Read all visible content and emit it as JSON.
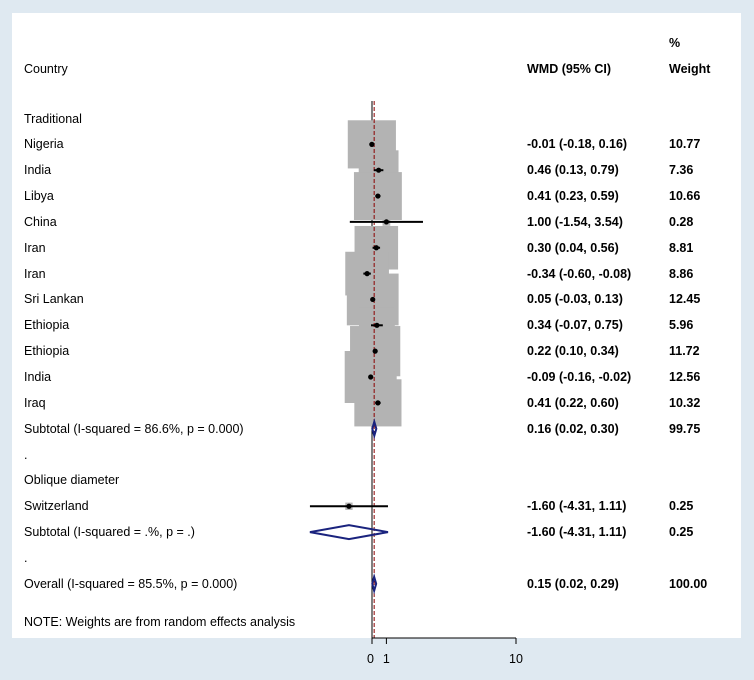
{
  "header": {
    "country_col": "Country",
    "ci_col": "WMD (95% CI)",
    "weight_col_top": "%",
    "weight_col_bottom": "Weight"
  },
  "colors": {
    "background": "#dfe9f1",
    "panel": "#ffffff",
    "box": "#b3b3b3",
    "diamond": "#1a237e",
    "null_line": "#000000",
    "overall_line": "#8b0000"
  },
  "chart_data": {
    "type": "forest",
    "null_value": 0,
    "overall_effect": 0.15,
    "x_ticks": [
      0,
      1,
      10
    ],
    "x_tick_labels": [
      "0",
      "1",
      "10"
    ],
    "rows": [
      {
        "kind": "header",
        "label": "Traditional"
      },
      {
        "kind": "study",
        "label": "Nigeria",
        "est": -0.01,
        "lo": -0.18,
        "hi": 0.16,
        "ci_text": "-0.01 (-0.18, 0.16)",
        "weight": 10.77,
        "weight_text": "10.77"
      },
      {
        "kind": "study",
        "label": "India",
        "est": 0.46,
        "lo": 0.13,
        "hi": 0.79,
        "ci_text": "0.46 (0.13, 0.79)",
        "weight": 7.36,
        "weight_text": "7.36"
      },
      {
        "kind": "study",
        "label": "Libya",
        "est": 0.41,
        "lo": 0.23,
        "hi": 0.59,
        "ci_text": "0.41 (0.23, 0.59)",
        "weight": 10.66,
        "weight_text": "10.66"
      },
      {
        "kind": "study",
        "label": "China",
        "est": 1.0,
        "lo": -1.54,
        "hi": 3.54,
        "ci_text": "1.00 (-1.54, 3.54)",
        "weight": 0.28,
        "weight_text": "0.28"
      },
      {
        "kind": "study",
        "label": "Iran",
        "est": 0.3,
        "lo": 0.04,
        "hi": 0.56,
        "ci_text": "0.30 (0.04, 0.56)",
        "weight": 8.81,
        "weight_text": "8.81"
      },
      {
        "kind": "study",
        "label": "Iran",
        "est": -0.34,
        "lo": -0.6,
        "hi": -0.08,
        "ci_text": "-0.34 (-0.60, -0.08)",
        "weight": 8.86,
        "weight_text": "8.86"
      },
      {
        "kind": "study",
        "label": "Sri Lankan",
        "est": 0.05,
        "lo": -0.03,
        "hi": 0.13,
        "ci_text": "0.05 (-0.03, 0.13)",
        "weight": 12.45,
        "weight_text": "12.45"
      },
      {
        "kind": "study",
        "label": "Ethiopia",
        "est": 0.34,
        "lo": -0.07,
        "hi": 0.75,
        "ci_text": "0.34 (-0.07, 0.75)",
        "weight": 5.96,
        "weight_text": "5.96"
      },
      {
        "kind": "study",
        "label": "Ethiopia",
        "est": 0.22,
        "lo": 0.1,
        "hi": 0.34,
        "ci_text": "0.22 (0.10, 0.34)",
        "weight": 11.72,
        "weight_text": "11.72"
      },
      {
        "kind": "study",
        "label": "India",
        "est": -0.09,
        "lo": -0.16,
        "hi": -0.02,
        "ci_text": "-0.09 (-0.16, -0.02)",
        "weight": 12.56,
        "weight_text": "12.56"
      },
      {
        "kind": "study",
        "label": "Iraq",
        "est": 0.41,
        "lo": 0.22,
        "hi": 0.6,
        "ci_text": "0.41 (0.22, 0.60)",
        "weight": 10.32,
        "weight_text": "10.32"
      },
      {
        "kind": "subtotal",
        "label": "Subtotal  (I-squared = 86.6%, p = 0.000)",
        "est": 0.16,
        "lo": 0.02,
        "hi": 0.3,
        "ci_text": "0.16 (0.02, 0.30)",
        "weight": 99.75,
        "weight_text": "99.75"
      },
      {
        "kind": "blank",
        "label": "."
      },
      {
        "kind": "header",
        "label": "Oblique diameter"
      },
      {
        "kind": "study",
        "label": "Switzerland",
        "est": -1.6,
        "lo": -4.31,
        "hi": 1.11,
        "ci_text": "-1.60 (-4.31, 1.11)",
        "weight": 0.25,
        "weight_text": "0.25"
      },
      {
        "kind": "subtotal",
        "label": "Subtotal  (I-squared = .%, p = .)",
        "est": -1.6,
        "lo": -4.31,
        "hi": 1.11,
        "ci_text": "-1.60 (-4.31, 1.11)",
        "weight": 0.25,
        "weight_text": "0.25"
      },
      {
        "kind": "blank",
        "label": "."
      },
      {
        "kind": "overall",
        "label": "Overall  (I-squared = 85.5%, p = 0.000)",
        "est": 0.15,
        "lo": 0.02,
        "hi": 0.29,
        "ci_text": "0.15 (0.02, 0.29)",
        "weight": 100.0,
        "weight_text": "100.00"
      }
    ],
    "note": "NOTE: Weights are from random effects analysis"
  }
}
